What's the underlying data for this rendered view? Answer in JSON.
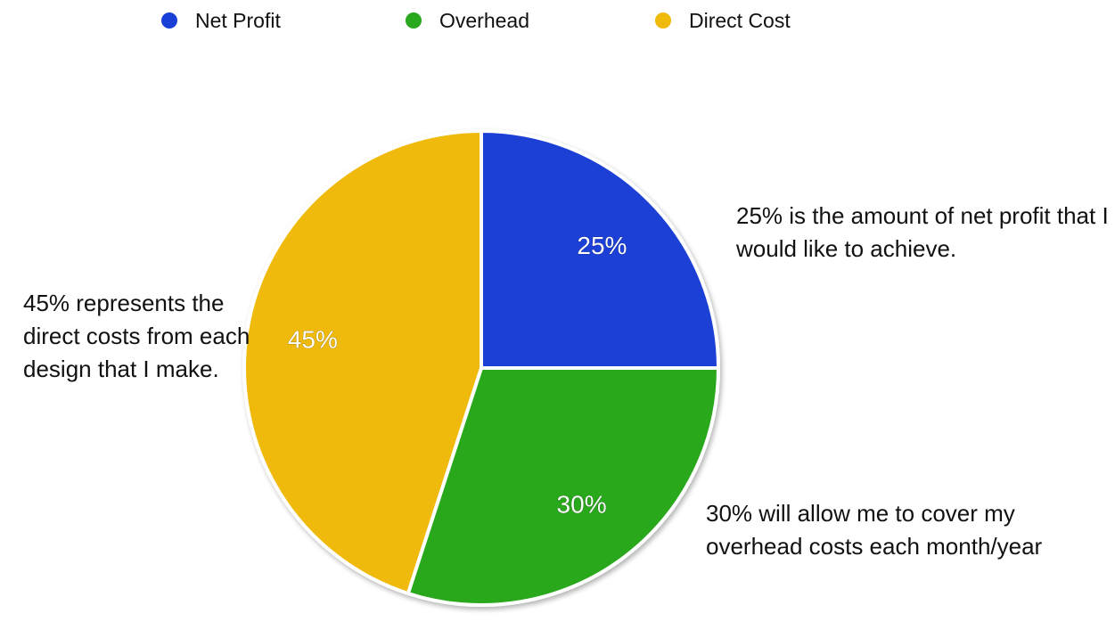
{
  "chart_data": {
    "type": "pie",
    "slices": [
      {
        "name": "Net Profit",
        "value": 25,
        "label": "25%",
        "color": "#1a3fd6"
      },
      {
        "name": "Overhead",
        "value": 30,
        "label": "30%",
        "color": "#2aa81e"
      },
      {
        "name": "Direct Cost",
        "value": 45,
        "label": "45%",
        "color": "#f0ba0c"
      }
    ],
    "legend_position": "top",
    "annotations": {
      "net_profit": "25% is the amount of net profit that I would like to achieve.",
      "overhead": "30% will allow me to cover my overhead costs each month/year",
      "direct_cost": "45% represents the direct costs from each design that I make."
    }
  }
}
